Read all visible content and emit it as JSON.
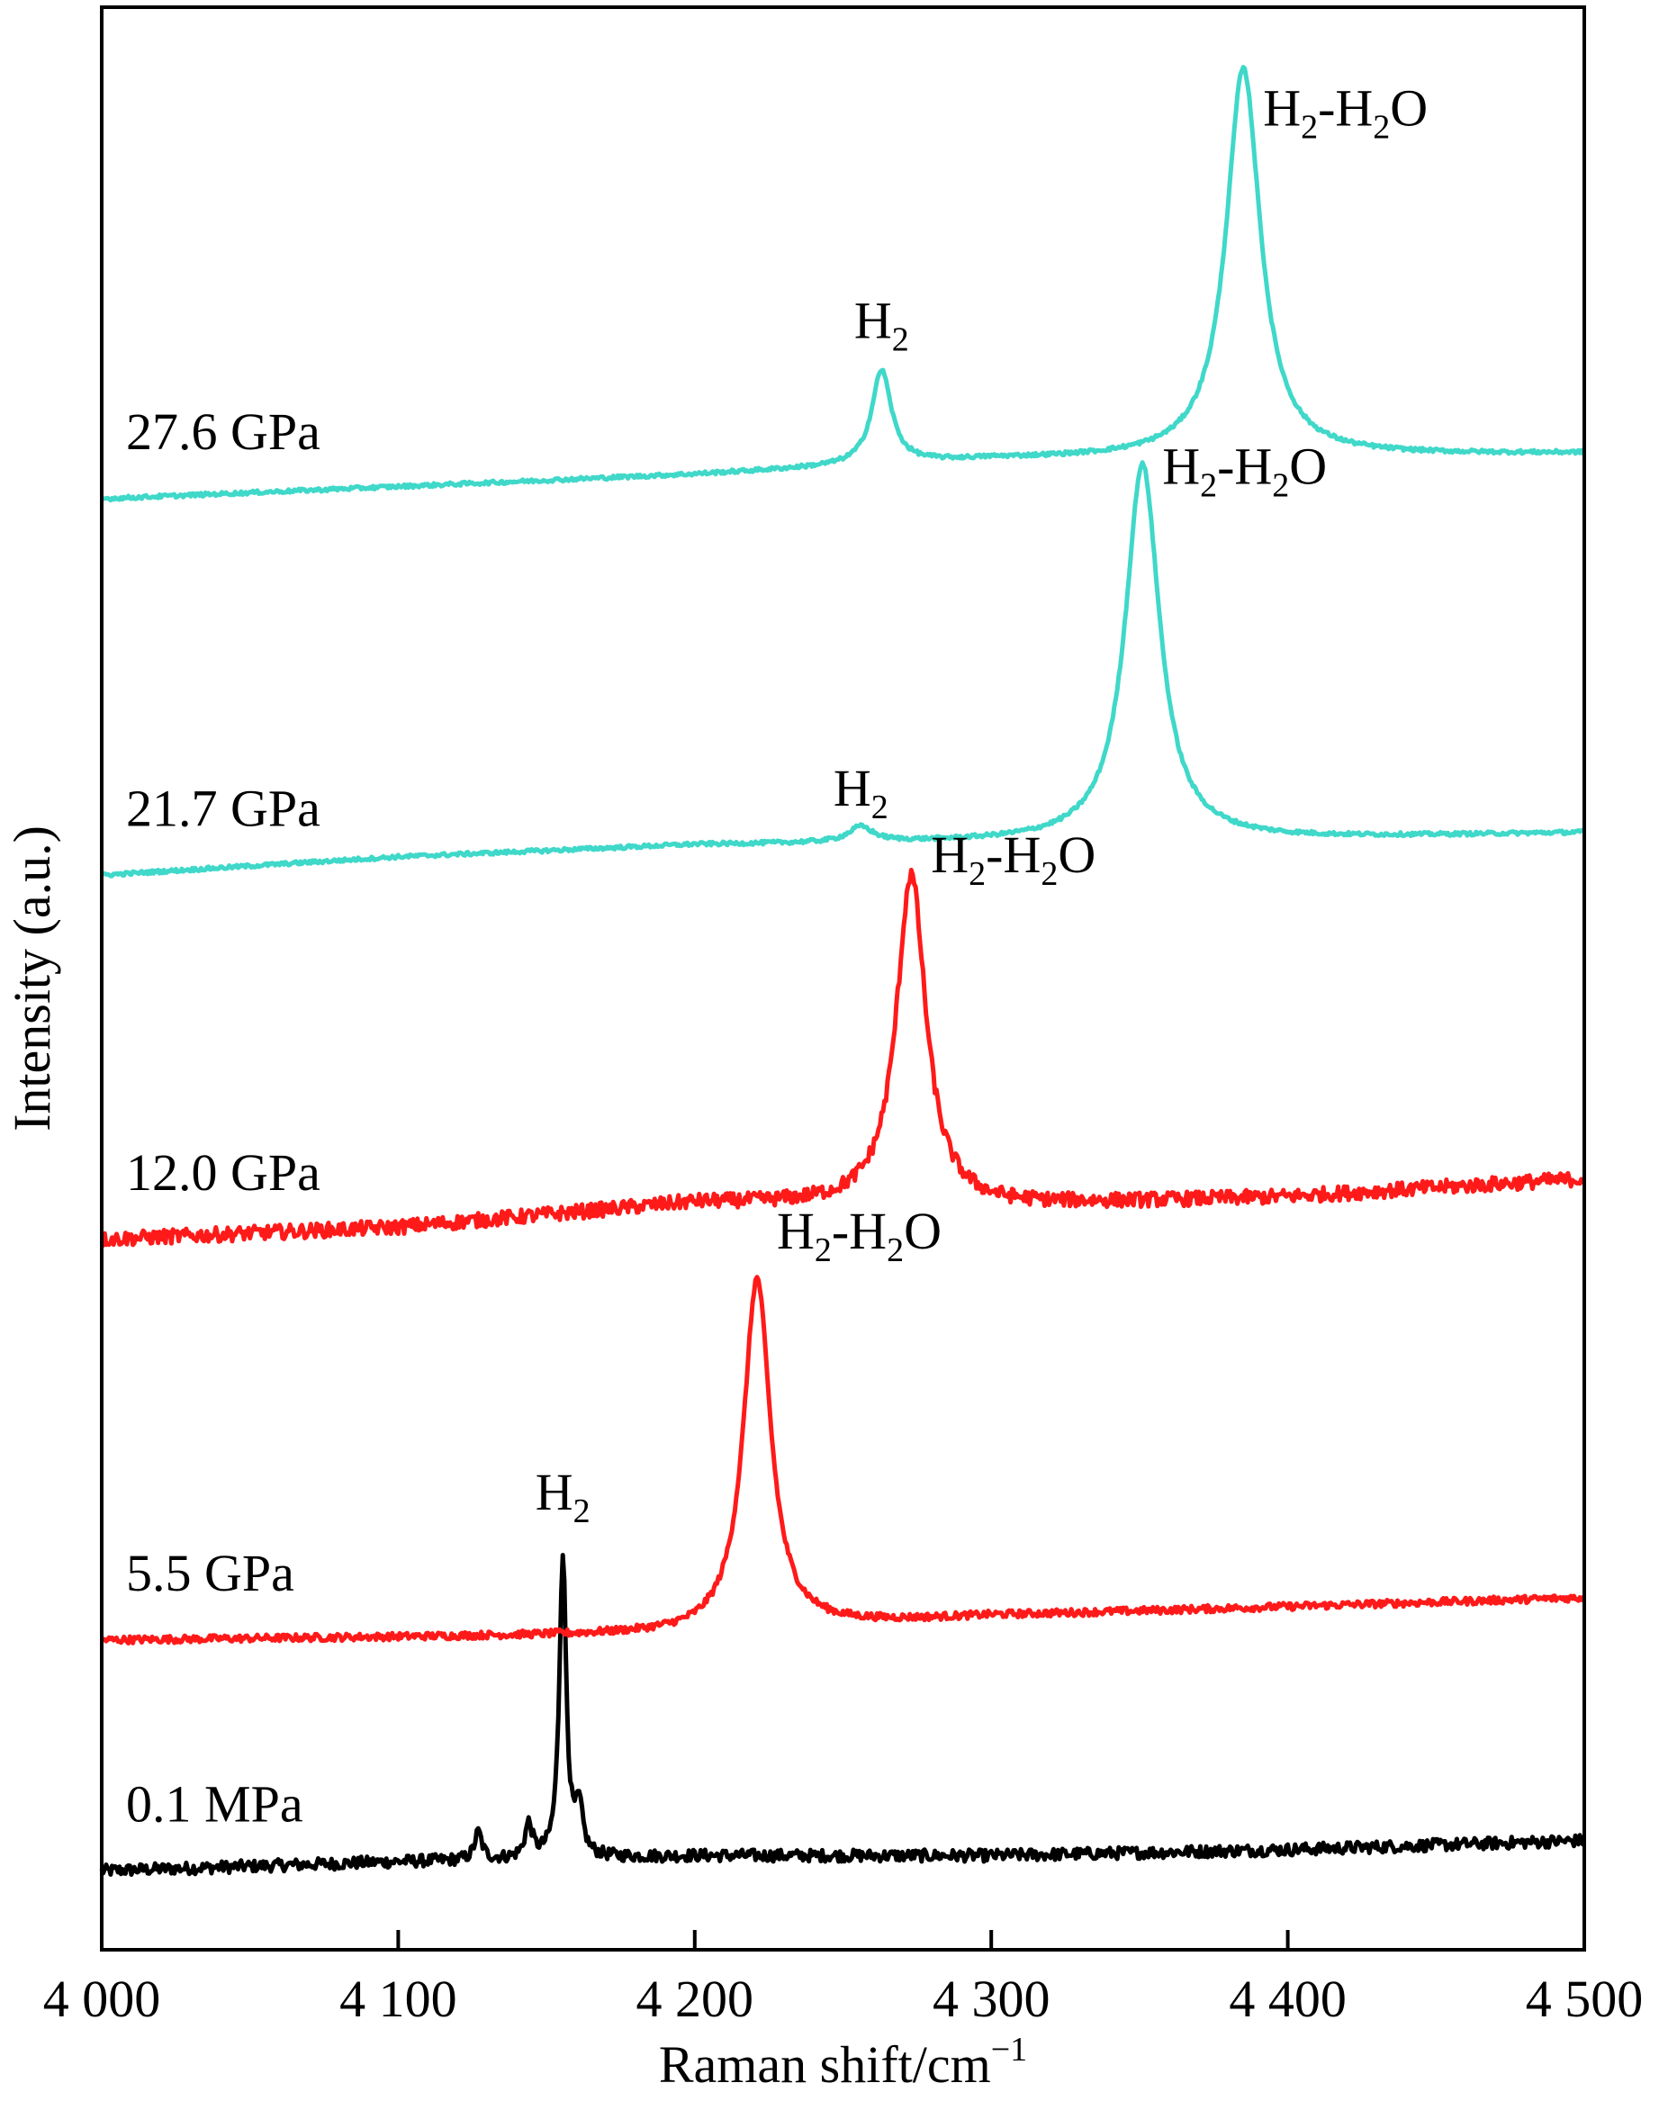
{
  "chart_data": {
    "type": "line",
    "xlabel": "Raman shift/cm",
    "xlabel_sup": "−1",
    "ylabel": "Intensity (a.u.)",
    "xlim": [
      4000,
      4500
    ],
    "x_ticks": [
      4000,
      4100,
      4200,
      4300,
      4400,
      4500
    ],
    "x_tick_labels": [
      "4 000",
      "4 100",
      "4 200",
      "4 300",
      "4 400",
      "4 500"
    ],
    "y_ticks_shown": false,
    "grid": false,
    "legend": "none",
    "series": [
      {
        "name": "0.1 MPa",
        "color": "#000000",
        "baseline": [
          [
            4000,
            0.3
          ],
          [
            4100,
            0.45
          ],
          [
            4200,
            0.55
          ],
          [
            4300,
            0.55
          ],
          [
            4400,
            0.65
          ],
          [
            4500,
            0.8
          ]
        ],
        "peaks": [
          {
            "center": 4127,
            "height": 0.45,
            "width": 1.5
          },
          {
            "center": 4144,
            "height": 0.55,
            "width": 1.5
          },
          {
            "center": 4155.5,
            "height": 5.0,
            "width": 1.4
          },
          {
            "center": 4161,
            "height": 0.75,
            "width": 1.5
          }
        ],
        "noise": 0.1
      },
      {
        "name": "5.5 GPa",
        "color": "#ff1a1a",
        "baseline": [
          [
            4000,
            4.1
          ],
          [
            4200,
            4.2
          ],
          [
            4300,
            4.5
          ],
          [
            4500,
            4.8
          ]
        ],
        "peaks": [
          {
            "center": 4221,
            "height": 5.8,
            "width": 5.5
          }
        ],
        "noise": 0.06
      },
      {
        "name": "12.0 GPa",
        "color": "#ff1a1a",
        "baseline": [
          [
            4000,
            10.7
          ],
          [
            4100,
            10.9
          ],
          [
            4200,
            11.3
          ],
          [
            4300,
            11.25
          ],
          [
            4400,
            11.4
          ],
          [
            4500,
            11.7
          ]
        ],
        "peaks": [
          {
            "center": 4273,
            "height": 5.45,
            "width": 6.0
          }
        ],
        "noise": 0.12
      },
      {
        "name": "21.7 GPa",
        "color": "#3fd8c9",
        "baseline": [
          [
            4000,
            16.7
          ],
          [
            4100,
            17.0
          ],
          [
            4200,
            17.2
          ],
          [
            4300,
            17.25
          ],
          [
            4400,
            17.3
          ],
          [
            4500,
            17.4
          ]
        ],
        "peaks": [
          {
            "center": 4256,
            "height": 0.25,
            "width": 5.0
          },
          {
            "center": 4351,
            "height": 6.2,
            "width": 7.0
          }
        ],
        "noise": 0.03
      },
      {
        "name": "27.6 GPa",
        "color": "#3fd8c9",
        "baseline": [
          [
            4000,
            22.9
          ],
          [
            4200,
            23.3
          ],
          [
            4300,
            23.55
          ],
          [
            4500,
            23.65
          ]
        ],
        "peaks": [
          {
            "center": 4263,
            "height": 1.55,
            "width": 4.0
          },
          {
            "center": 4385,
            "height": 6.4,
            "width": 7.0
          }
        ],
        "noise": 0.03
      }
    ],
    "annotations": [
      {
        "text": "H",
        "sub": "2",
        "x": 4155.5,
        "y": 6.25,
        "series": "0.1 MPa"
      },
      {
        "text": "H",
        "sub": "2",
        "mid": "-H",
        "sub2": "2",
        "tail": "O",
        "x": 4221,
        "y": 10.55,
        "series": "5.5 GPa"
      },
      {
        "text": "H",
        "sub": "2",
        "mid": "-H",
        "sub2": "2",
        "tail": "O",
        "x": 4273,
        "y": 16.75,
        "series": "12.0 GPa"
      },
      {
        "text": "H",
        "sub": "2",
        "x": 4256,
        "y": 17.85,
        "series": "21.7 GPa"
      },
      {
        "text": "H",
        "sub": "2",
        "mid": "-H",
        "sub2": "2",
        "tail": "O",
        "x": 4351,
        "y": 23.15,
        "series": "21.7 GPa"
      },
      {
        "text": "H",
        "sub": "2",
        "x": 4263,
        "y": 25.55,
        "series": "27.6 GPa"
      },
      {
        "text": "H",
        "sub": "2",
        "mid": "-H",
        "sub2": "2",
        "tail": "O",
        "x": 4385,
        "y": 29.05,
        "series": "27.6 GPa"
      }
    ]
  }
}
